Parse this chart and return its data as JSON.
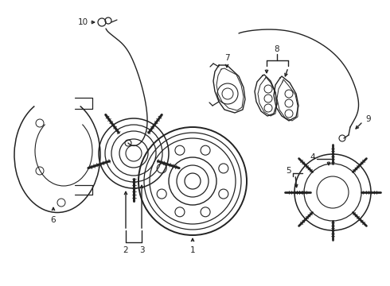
{
  "background_color": "#ffffff",
  "line_color": "#222222",
  "lw": 1.0,
  "figsize": [
    4.9,
    3.6
  ],
  "dpi": 100
}
